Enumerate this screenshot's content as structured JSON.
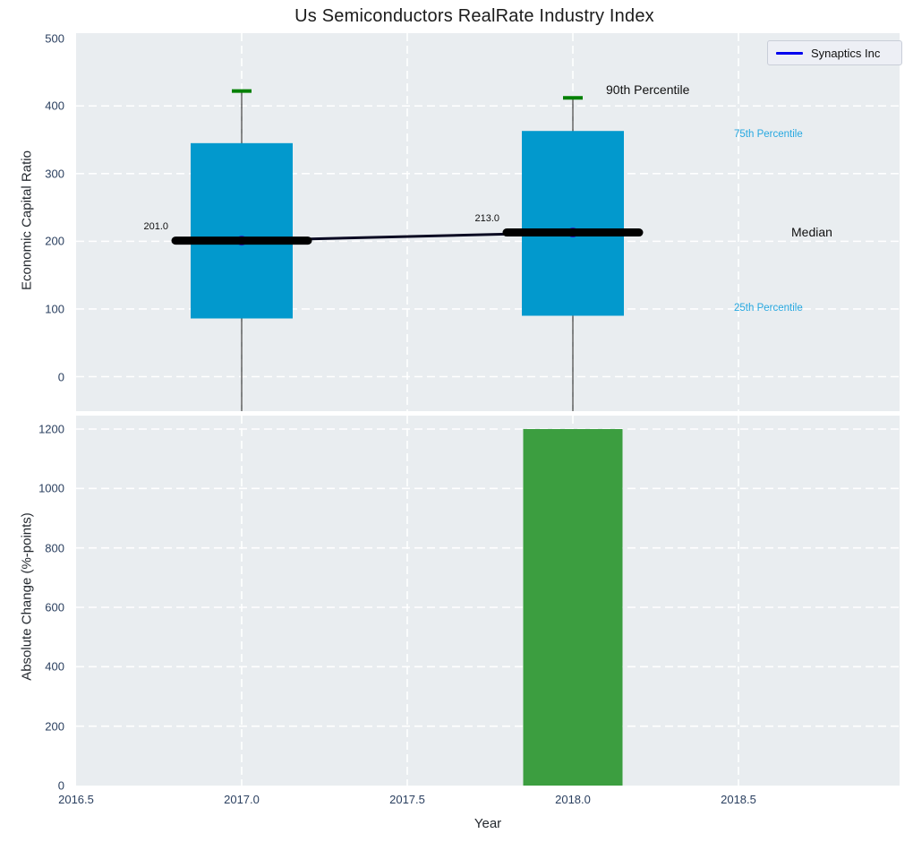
{
  "title": "Us Semiconductors RealRate Industry Index",
  "legend": {
    "label": "Synaptics Inc"
  },
  "labels": {
    "p90": "90th Percentile",
    "p75": "75th Percentile",
    "median": "Median",
    "p25": "25th Percentile"
  },
  "colors": {
    "box_fill": "#0299cd",
    "whisker_cap": "#008000",
    "whisker_line_alpha": "rgba(40,40,40,0.55)",
    "median_line": "#000000",
    "series_line": "#0a0a22",
    "marker": "#2a22cc",
    "bar_fill": "#3c9e40",
    "percentile_label_blue": "#27a8e0",
    "legend_line": "#0000ee",
    "plot_bg": "#e9edf0",
    "grid": "#ffffff",
    "tick_color": "#2a3f5f"
  },
  "chart_data": [
    {
      "type": "box",
      "title": "Us Semiconductors RealRate Industry Index",
      "ylabel": "Economic Capital Ratio",
      "yticks": [
        0,
        100,
        200,
        300,
        400,
        500
      ],
      "ylim": [
        -51,
        507
      ],
      "xlim": [
        2016.5,
        2018.99
      ],
      "grid": "white dashed, on",
      "legend_position": "top-right",
      "boxes": [
        {
          "x": 2017,
          "p90": 422,
          "p75": 345,
          "median": 201,
          "p25": 86,
          "median_label": "201.0"
        },
        {
          "x": 2018,
          "p90": 412,
          "p75": 363,
          "median": 213,
          "p25": 90,
          "median_label": "213.0"
        }
      ],
      "series": [
        {
          "name": "Synaptics Inc",
          "x": [
            2017,
            2018
          ],
          "y": [
            201,
            213
          ]
        }
      ]
    },
    {
      "type": "bar",
      "ylabel": "Absolute Change (%-points)",
      "xlabel": "Year",
      "x": [
        2018
      ],
      "values": [
        1200
      ],
      "yticks": [
        0,
        200,
        400,
        600,
        800,
        1000,
        1200
      ],
      "xticks": [
        "2016.5",
        "2017.0",
        "2017.5",
        "2018.0",
        "2018.5"
      ],
      "xtick_values": [
        2016.5,
        2017.0,
        2017.5,
        2018.0,
        2018.5
      ],
      "xlim": [
        2016.5,
        2018.99
      ],
      "ylim": [
        0,
        1245
      ],
      "grid": "white dashed, on"
    }
  ]
}
